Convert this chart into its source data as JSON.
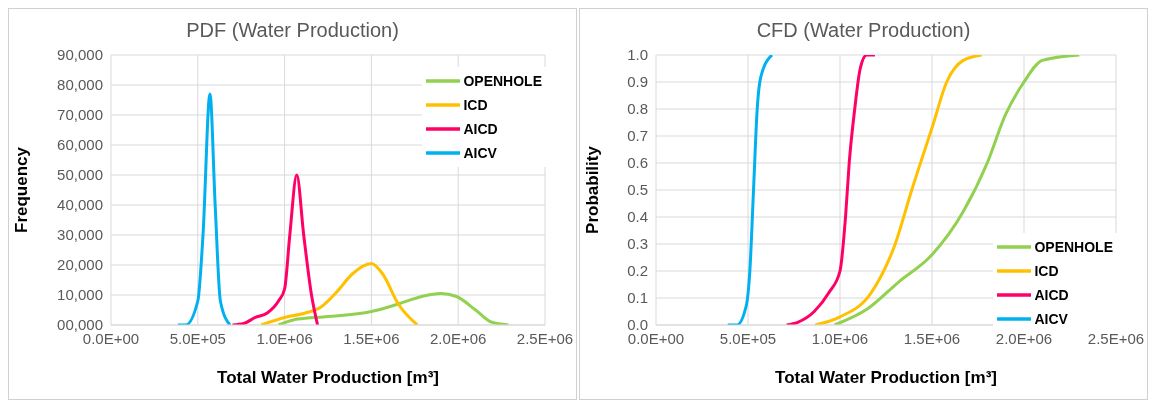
{
  "chart_data": [
    {
      "type": "line",
      "title": "PDF (Water Production)",
      "xlabel": "Total Water Production [m³]",
      "ylabel": "Frequency",
      "xlim": [
        0,
        2500000
      ],
      "xticks": [
        {
          "value": 0,
          "label": "0.0E+00"
        },
        {
          "value": 500000,
          "label": "5.0E+05"
        },
        {
          "value": 1000000,
          "label": "1.0E+06"
        },
        {
          "value": 1500000,
          "label": "1.5E+06"
        },
        {
          "value": 2000000,
          "label": "2.0E+06"
        },
        {
          "value": 2500000,
          "label": "2.5E+06"
        }
      ],
      "ylim": [
        0,
        90000
      ],
      "yticks": [
        {
          "value": 0,
          "label": "00,000"
        },
        {
          "value": 10000,
          "label": "10,000"
        },
        {
          "value": 20000,
          "label": "20,000"
        },
        {
          "value": 30000,
          "label": "30,000"
        },
        {
          "value": 40000,
          "label": "40,000"
        },
        {
          "value": 50000,
          "label": "50,000"
        },
        {
          "value": 60000,
          "label": "60,000"
        },
        {
          "value": 70000,
          "label": "70,000"
        },
        {
          "value": 80000,
          "label": "80,000"
        },
        {
          "value": 90000,
          "label": "90,000"
        }
      ],
      "grid": true,
      "legend": "top right",
      "marker": "none",
      "line_style": "solid",
      "series": [
        {
          "name": "OPENHOLE",
          "color": "#92d050",
          "x": [
            965000,
            1075000,
            1250000,
            1500000,
            1655000,
            1790000,
            1900000,
            1990000,
            2100000,
            2190000,
            2290000
          ],
          "values": [
            0,
            2000,
            2800,
            4500,
            7000,
            9500,
            10500,
            9500,
            5000,
            1000,
            0
          ]
        },
        {
          "name": "ICD",
          "color": "#ffc000",
          "x": [
            865000,
            1000000,
            1120000,
            1210000,
            1300000,
            1390000,
            1500000,
            1565000,
            1655000,
            1765000
          ],
          "values": [
            0,
            2500,
            4000,
            6000,
            11000,
            17000,
            20500,
            17000,
            7000,
            0
          ]
        },
        {
          "name": "AICD",
          "color": "#ff0066",
          "x": [
            700000,
            765000,
            830000,
            900000,
            965000,
            1000000,
            1030000,
            1070000,
            1110000,
            1155000,
            1190000
          ],
          "values": [
            0,
            500,
            2500,
            4000,
            8000,
            12000,
            30000,
            50000,
            30000,
            10000,
            0
          ]
        },
        {
          "name": "AICV",
          "color": "#00b0f0",
          "x": [
            385000,
            430000,
            500000,
            530000,
            570000,
            600000,
            630000,
            685000
          ],
          "values": [
            0,
            0,
            8000,
            30000,
            77000,
            40000,
            8000,
            0
          ]
        }
      ]
    },
    {
      "type": "line",
      "title": "CFD (Water Production)",
      "xlabel": "Total Water Production [m³]",
      "ylabel": "Probability",
      "xlim": [
        0,
        2500000
      ],
      "xticks": [
        {
          "value": 0,
          "label": "0.0E+00"
        },
        {
          "value": 500000,
          "label": "5.0E+05"
        },
        {
          "value": 1000000,
          "label": "1.0E+06"
        },
        {
          "value": 1500000,
          "label": "1.5E+06"
        },
        {
          "value": 2000000,
          "label": "2.0E+06"
        },
        {
          "value": 2500000,
          "label": "2.5E+06"
        }
      ],
      "ylim": [
        0,
        1
      ],
      "yticks": [
        {
          "value": 0,
          "label": "0.0"
        },
        0.1,
        0.2,
        0.3,
        0.4,
        0.5,
        0.6,
        0.7,
        0.8,
        0.9,
        {
          "value": 1,
          "label": "1.0"
        }
      ],
      "grid": true,
      "legend": "bottom right",
      "marker": "none",
      "line_style": "solid",
      "series": [
        {
          "name": "OPENHOLE",
          "color": "#92d050",
          "x": [
            970000,
            1150000,
            1320000,
            1500000,
            1670000,
            1800000,
            1900000,
            2000000,
            2100000,
            2300000
          ],
          "values": [
            0,
            0.06,
            0.16,
            0.26,
            0.42,
            0.6,
            0.78,
            0.9,
            0.98,
            1
          ]
        },
        {
          "name": "ICD",
          "color": "#ffc000",
          "x": [
            865000,
            1000000,
            1170000,
            1300000,
            1390000,
            1500000,
            1580000,
            1670000,
            1770000
          ],
          "values": [
            0,
            0.03,
            0.12,
            0.3,
            0.5,
            0.73,
            0.9,
            0.98,
            1
          ]
        },
        {
          "name": "AICD",
          "color": "#ff0066",
          "x": [
            710000,
            770000,
            860000,
            940000,
            1000000,
            1030000,
            1050000,
            1080000,
            1110000,
            1145000,
            1190000
          ],
          "values": [
            0,
            0.01,
            0.05,
            0.12,
            0.2,
            0.4,
            0.6,
            0.8,
            0.95,
            1,
            1
          ]
        },
        {
          "name": "AICV",
          "color": "#00b0f0",
          "x": [
            390000,
            440000,
            490000,
            510000,
            530000,
            550000,
            570000,
            630000
          ],
          "values": [
            0,
            0,
            0.07,
            0.2,
            0.5,
            0.8,
            0.92,
            1
          ]
        }
      ]
    }
  ]
}
